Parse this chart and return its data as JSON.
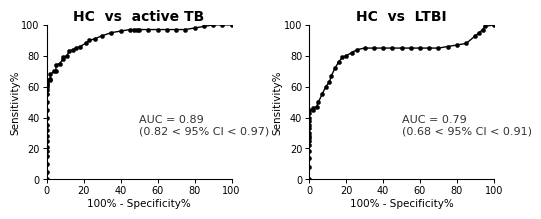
{
  "plot1": {
    "title": "HC  vs  active TB",
    "auc_text": "AUC = 0.89\n(0.82 < 95% CI < 0.97)",
    "fpr": [
      0,
      0,
      0,
      0,
      0,
      0,
      0,
      0,
      0,
      0,
      0,
      0,
      0,
      0,
      0,
      0,
      0,
      0,
      0,
      0,
      0.02,
      0.02,
      0.02,
      0.04,
      0.05,
      0.05,
      0.07,
      0.09,
      0.09,
      0.11,
      0.12,
      0.14,
      0.16,
      0.18,
      0.21,
      0.23,
      0.26,
      0.3,
      0.35,
      0.4,
      0.45,
      0.47,
      0.49,
      0.5,
      0.55,
      0.6,
      0.65,
      0.7,
      0.75,
      0.8,
      0.85,
      0.9,
      0.95,
      1.0
    ],
    "tpr": [
      0,
      0.05,
      0.1,
      0.15,
      0.18,
      0.21,
      0.25,
      0.28,
      0.32,
      0.35,
      0.4,
      0.45,
      0.5,
      0.55,
      0.58,
      0.6,
      0.61,
      0.62,
      0.63,
      0.64,
      0.64,
      0.65,
      0.68,
      0.7,
      0.7,
      0.74,
      0.75,
      0.78,
      0.79,
      0.8,
      0.83,
      0.84,
      0.85,
      0.86,
      0.88,
      0.9,
      0.91,
      0.93,
      0.95,
      0.96,
      0.97,
      0.97,
      0.97,
      0.97,
      0.97,
      0.97,
      0.97,
      0.97,
      0.97,
      0.98,
      0.99,
      1.0,
      1.0,
      1.0
    ]
  },
  "plot2": {
    "title": "HC  vs  LTBI",
    "auc_text": "AUC = 0.79\n(0.68 < 95% CI < 0.91)",
    "fpr": [
      0,
      0,
      0,
      0,
      0,
      0,
      0,
      0,
      0,
      0,
      0,
      0,
      0,
      0,
      0,
      0.02,
      0.02,
      0.04,
      0.05,
      0.07,
      0.09,
      0.11,
      0.12,
      0.14,
      0.16,
      0.18,
      0.2,
      0.23,
      0.26,
      0.3,
      0.35,
      0.4,
      0.45,
      0.5,
      0.55,
      0.6,
      0.65,
      0.7,
      0.75,
      0.8,
      0.85,
      0.9,
      0.92,
      0.94,
      0.95,
      1.0
    ],
    "tpr": [
      0,
      0.08,
      0.14,
      0.18,
      0.22,
      0.25,
      0.27,
      0.28,
      0.3,
      0.33,
      0.35,
      0.38,
      0.4,
      0.43,
      0.45,
      0.45,
      0.46,
      0.47,
      0.5,
      0.55,
      0.6,
      0.63,
      0.67,
      0.72,
      0.76,
      0.79,
      0.8,
      0.82,
      0.84,
      0.85,
      0.85,
      0.85,
      0.85,
      0.85,
      0.85,
      0.85,
      0.85,
      0.85,
      0.86,
      0.87,
      0.88,
      0.93,
      0.95,
      0.97,
      0.99,
      1.0
    ]
  },
  "xlabel": "100% - Specificity%",
  "ylabel": "Sensitivity%",
  "xlim": [
    0,
    100
  ],
  "ylim": [
    0,
    100
  ],
  "xticks": [
    0,
    20,
    40,
    60,
    80,
    100
  ],
  "yticks": [
    0,
    20,
    40,
    60,
    80,
    100
  ],
  "line_color": "#000000",
  "marker": "o",
  "markersize": 3.0,
  "linewidth": 1.0,
  "title_fontsize": 10,
  "label_fontsize": 7.5,
  "tick_fontsize": 7,
  "auc_fontsize": 8,
  "bg_color": "#ffffff"
}
